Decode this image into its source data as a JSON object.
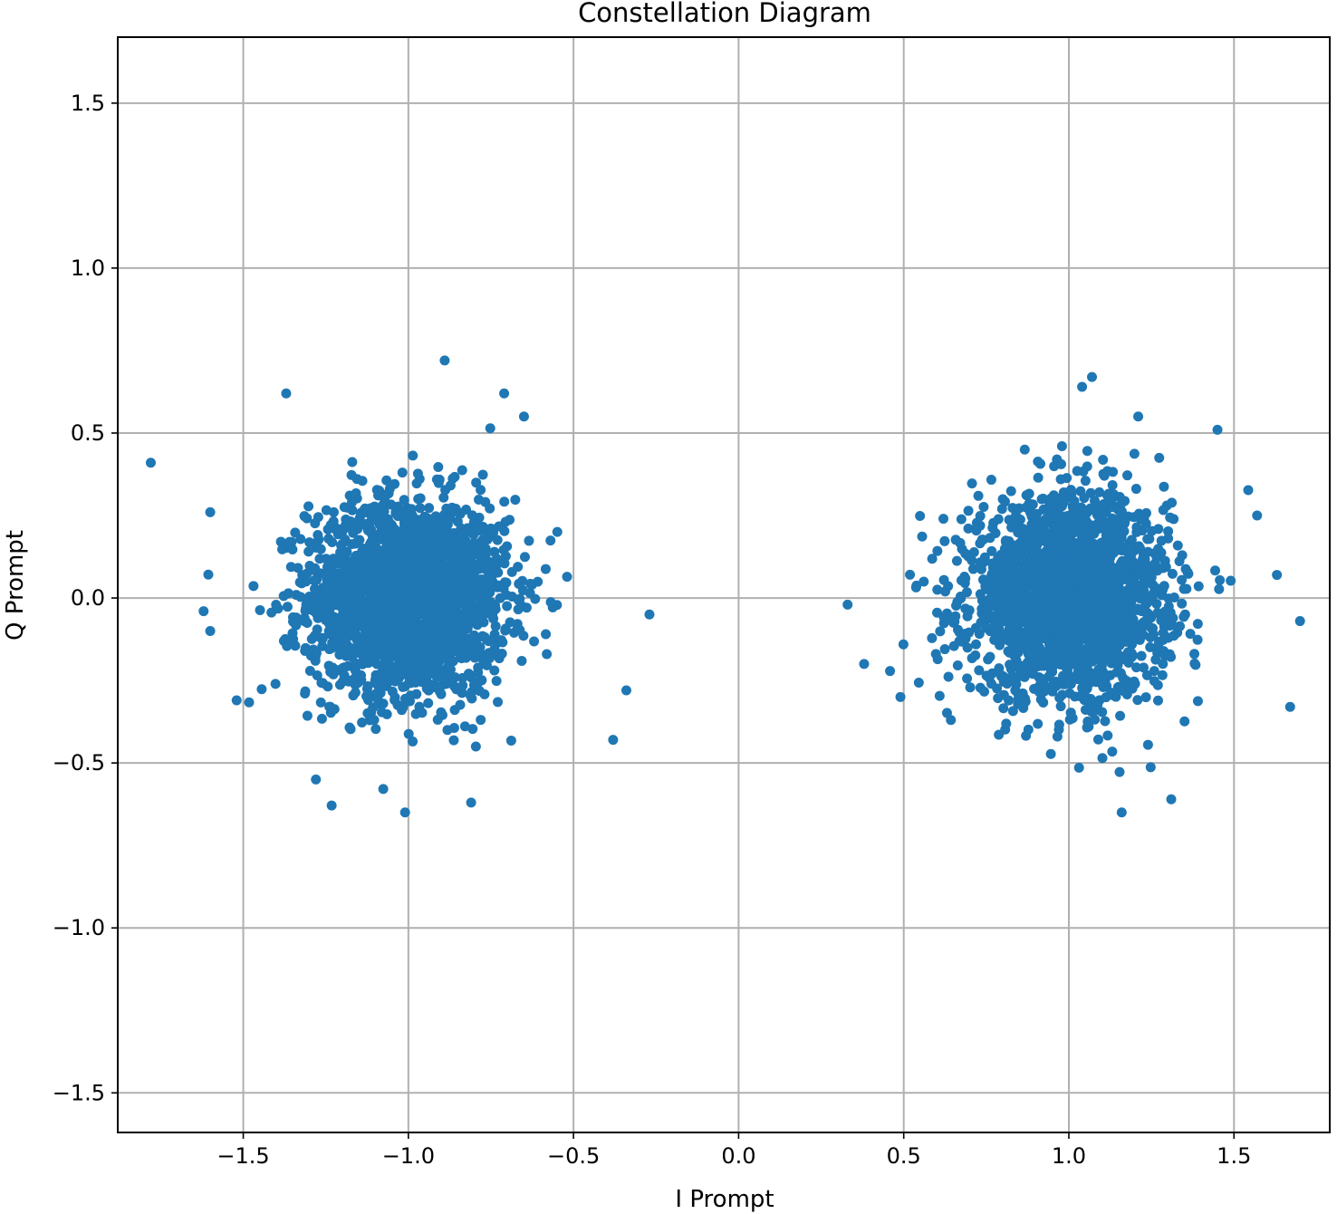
{
  "chart_data": {
    "type": "scatter",
    "title": "Constellation Diagram",
    "xlabel": "I Prompt",
    "ylabel": "Q Prompt",
    "xlim": [
      -1.88,
      1.79
    ],
    "ylim": [
      -1.62,
      1.7
    ],
    "x_ticks": [
      -1.5,
      -1.0,
      -0.5,
      0.0,
      0.5,
      1.0,
      1.5
    ],
    "y_ticks": [
      -1.5,
      -1.0,
      -0.5,
      0.0,
      0.5,
      1.0,
      1.5
    ],
    "x_tick_labels": [
      "−1.5",
      "−1.0",
      "−0.5",
      "0.0",
      "0.5",
      "1.0",
      "1.5"
    ],
    "y_tick_labels": [
      "−1.5",
      "−1.0",
      "−0.5",
      "0.0",
      "0.5",
      "1.0",
      "1.5"
    ],
    "grid": true,
    "marker_color": "#1f77b4",
    "clusters": [
      {
        "center": [
          -1.0,
          0.0
        ],
        "std": [
          0.15,
          0.15
        ],
        "count": 2200
      },
      {
        "center": [
          1.0,
          0.0
        ],
        "std": [
          0.15,
          0.15
        ],
        "count": 2200
      }
    ],
    "outliers": [
      [
        -1.78,
        0.41
      ],
      [
        -0.89,
        0.72
      ],
      [
        -1.37,
        0.62
      ],
      [
        -1.6,
        0.26
      ],
      [
        -1.62,
        -0.04
      ],
      [
        -1.6,
        -0.1
      ],
      [
        -1.52,
        -0.31
      ],
      [
        -0.27,
        -0.05
      ],
      [
        -0.34,
        -0.28
      ],
      [
        -0.38,
        -0.43
      ],
      [
        -0.81,
        -0.62
      ],
      [
        -1.01,
        -0.65
      ],
      [
        -0.71,
        0.62
      ],
      [
        -0.65,
        0.55
      ],
      [
        -1.28,
        -0.55
      ],
      [
        0.33,
        -0.02
      ],
      [
        0.38,
        -0.2
      ],
      [
        1.07,
        0.67
      ],
      [
        1.16,
        -0.65
      ],
      [
        1.31,
        -0.61
      ],
      [
        1.7,
        -0.07
      ],
      [
        1.67,
        -0.33
      ],
      [
        1.57,
        0.25
      ],
      [
        1.45,
        0.51
      ],
      [
        0.49,
        -0.3
      ],
      [
        1.63,
        0.07
      ],
      [
        1.21,
        0.55
      ],
      [
        1.04,
        0.64
      ]
    ]
  }
}
